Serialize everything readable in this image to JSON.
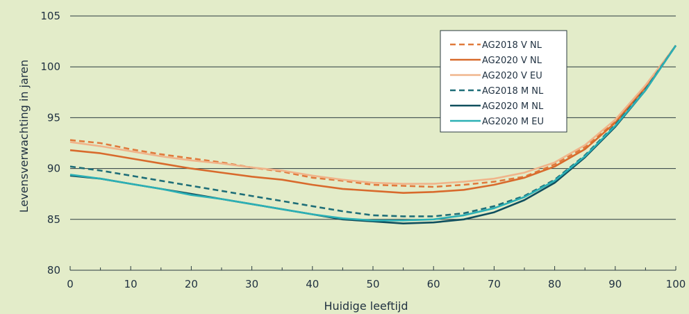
{
  "chart_data": {
    "type": "line",
    "xlabel": "Huidige leeftijd",
    "ylabel": "Levensverwachting in jaren",
    "xlim": [
      0,
      100
    ],
    "ylim": [
      80,
      105
    ],
    "x_ticks": [
      0,
      10,
      20,
      30,
      40,
      50,
      60,
      70,
      80,
      90,
      100
    ],
    "y_ticks": [
      80,
      85,
      90,
      95,
      100,
      105
    ],
    "grid": "horizontal",
    "legend_position": "top-right",
    "series": [
      {
        "name": "AG2018 V NL",
        "color": "#e07a3c",
        "style": "dashed",
        "x": [
          0,
          5,
          10,
          15,
          20,
          25,
          30,
          35,
          40,
          45,
          50,
          55,
          60,
          65,
          70,
          75,
          80,
          85,
          90,
          95,
          100
        ],
        "values": [
          92.8,
          92.5,
          91.9,
          91.4,
          91.0,
          90.6,
          90.1,
          89.7,
          89.1,
          88.8,
          88.4,
          88.3,
          88.2,
          88.4,
          88.7,
          89.2,
          90.4,
          92.1,
          94.6,
          98.0,
          102.1
        ]
      },
      {
        "name": "AG2020 V NL",
        "color": "#d86a2c",
        "style": "solid",
        "x": [
          0,
          5,
          10,
          15,
          20,
          25,
          30,
          35,
          40,
          45,
          50,
          55,
          60,
          65,
          70,
          75,
          80,
          85,
          90,
          95,
          100
        ],
        "values": [
          91.8,
          91.5,
          91.0,
          90.5,
          90.0,
          89.6,
          89.2,
          88.9,
          88.4,
          88.0,
          87.8,
          87.6,
          87.7,
          87.9,
          88.4,
          89.1,
          90.2,
          91.9,
          94.5,
          98.0,
          102.1
        ]
      },
      {
        "name": "AG2020 V EU",
        "color": "#f0b48a",
        "style": "solid",
        "x": [
          0,
          5,
          10,
          15,
          20,
          25,
          30,
          35,
          40,
          45,
          50,
          55,
          60,
          65,
          70,
          75,
          80,
          85,
          90,
          95,
          100
        ],
        "values": [
          92.6,
          92.2,
          91.7,
          91.2,
          90.8,
          90.5,
          90.1,
          89.8,
          89.3,
          88.9,
          88.6,
          88.5,
          88.5,
          88.7,
          89.0,
          89.6,
          90.6,
          92.3,
          94.8,
          98.2,
          102.1
        ]
      },
      {
        "name": "AG2018 M NL",
        "color": "#1e6e78",
        "style": "dashed",
        "x": [
          0,
          5,
          10,
          15,
          20,
          25,
          30,
          35,
          40,
          45,
          50,
          55,
          60,
          65,
          70,
          75,
          80,
          85,
          90,
          95,
          100
        ],
        "values": [
          90.2,
          89.8,
          89.3,
          88.8,
          88.3,
          87.8,
          87.3,
          86.8,
          86.3,
          85.8,
          85.4,
          85.3,
          85.3,
          85.6,
          86.3,
          87.3,
          88.9,
          91.3,
          94.3,
          97.8,
          102.1
        ]
      },
      {
        "name": "AG2020 M NL",
        "color": "#0f4f5e",
        "style": "solid",
        "x": [
          0,
          5,
          10,
          15,
          20,
          25,
          30,
          35,
          40,
          45,
          50,
          55,
          60,
          65,
          70,
          75,
          80,
          85,
          90,
          95,
          100
        ],
        "values": [
          89.3,
          89.0,
          88.5,
          88.0,
          87.5,
          87.0,
          86.5,
          86.0,
          85.5,
          85.0,
          84.8,
          84.6,
          84.7,
          85.0,
          85.7,
          86.9,
          88.6,
          91.1,
          94.1,
          97.7,
          102.1
        ]
      },
      {
        "name": "AG2020 M EU",
        "color": "#2bb0b5",
        "style": "solid",
        "x": [
          0,
          5,
          10,
          15,
          20,
          25,
          30,
          35,
          40,
          45,
          50,
          55,
          60,
          65,
          70,
          75,
          80,
          85,
          90,
          95,
          100
        ],
        "values": [
          89.4,
          89.0,
          88.5,
          88.0,
          87.4,
          87.0,
          86.5,
          86.0,
          85.5,
          85.1,
          84.9,
          84.9,
          85.0,
          85.4,
          86.1,
          87.2,
          88.8,
          91.2,
          94.2,
          97.7,
          102.1
        ]
      }
    ]
  }
}
